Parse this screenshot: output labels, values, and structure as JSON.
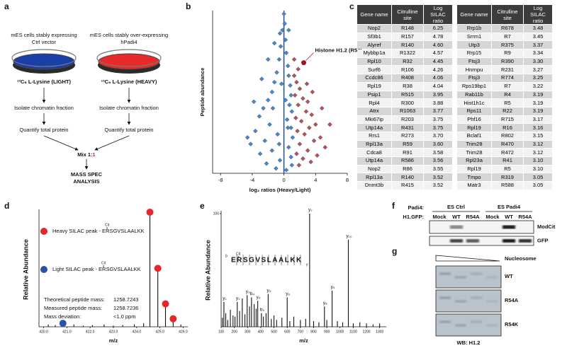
{
  "a": {
    "label": "a",
    "left": {
      "title": [
        "mES cells  stably expressing",
        "Ctrl vector"
      ],
      "medium": "¹³C₆ L-Lysine (LIGHT)",
      "steps": [
        "Isolate chromatin fraction",
        "Quantify total protein"
      ],
      "color": "#1b3fa8"
    },
    "right": {
      "title": [
        "mES cells stably over-expressing",
        "hPadi4"
      ],
      "medium": "¹³C₆ L-Lysine (HEAVY)",
      "steps": [
        "Isolate chromatin fraction",
        "Quantify total protein"
      ],
      "color": "#e82a2a"
    },
    "mix": [
      "Mix 1:",
      "1"
    ],
    "result": [
      "MASS SPEC",
      "ANALYSIS"
    ]
  },
  "b": {
    "label": "b",
    "type": "scatter",
    "xlabel": "log₂ ratios (Heavy/Light)",
    "ylabel": "Peptide abundance",
    "annotation": "Histone H1.2 (R54)",
    "xlim": [
      -9,
      8
    ],
    "ylim": [
      0,
      100
    ],
    "xticks": [
      -8,
      -4,
      0,
      4,
      8
    ],
    "series": [
      {
        "color": "#4a86c8",
        "x": [
          0,
          0.1,
          -0.2,
          0.2,
          -0.4,
          0.3,
          -0.6,
          0.5,
          -0.9,
          0.6,
          -1.2,
          0.8,
          -1.5,
          0.9,
          -2.0,
          0.7,
          -2.6,
          1.0,
          -3.1,
          0.4,
          -1.8,
          0.9,
          -3.6,
          -0.8,
          1.1,
          -2.4,
          -4.2,
          0.6,
          -1.5,
          -3.0,
          0.9,
          -0.5,
          -2.2,
          1.0,
          -1.0,
          0.3,
          -4.6,
          -3.8,
          -2.8,
          -2.0,
          -1.2,
          -0.5,
          0.6,
          -1.4,
          -0.3,
          0.2,
          -0.6,
          0.5
        ],
        "y": [
          98,
          92,
          88,
          82,
          78,
          74,
          70,
          66,
          62,
          60,
          56,
          54,
          50,
          48,
          45,
          42,
          40,
          38,
          35,
          33,
          30,
          28,
          26,
          24,
          22,
          20,
          18,
          16,
          14,
          12,
          10,
          8,
          6,
          5,
          3,
          2,
          22,
          44,
          58,
          70,
          80,
          86,
          88,
          40,
          55,
          45,
          18,
          28
        ]
      },
      {
        "color": "#c0504d",
        "x": [
          1.3,
          1.6,
          2.0,
          1.4,
          2.4,
          3.0,
          1.8,
          2.8,
          3.5,
          1.5,
          2.2,
          4.0,
          3.2,
          1.7,
          2.6,
          4.6,
          3.8,
          2.0,
          5.2,
          3.0,
          1.6,
          4.2,
          2.4,
          3.4,
          1.9,
          5.8,
          4.8,
          2.9,
          1.3,
          1.8,
          3.6
        ],
        "y": [
          60,
          56,
          52,
          48,
          46,
          44,
          42,
          38,
          36,
          34,
          32,
          30,
          28,
          26,
          24,
          22,
          20,
          18,
          16,
          14,
          12,
          11,
          9,
          7,
          5,
          30,
          40,
          55,
          70,
          64,
          50
        ]
      },
      {
        "color": "#a3122a",
        "x": [
          2.5
        ],
        "y": [
          68
        ]
      }
    ]
  },
  "c": {
    "label": "c",
    "headers": [
      "Gene name",
      "Citrulline site",
      "Log SILAC ratio"
    ],
    "tables": [
      [
        [
          "Nop2",
          "R148",
          "6.25"
        ],
        [
          "Sf3b1",
          "R157",
          "4.78"
        ],
        [
          "Alyref",
          "R140",
          "4.60"
        ],
        [
          "Mybbp1a",
          "R1322",
          "4.57"
        ],
        [
          "Rpl10",
          "R32",
          "4.45"
        ],
        [
          "Surf6",
          "R106",
          "4.26"
        ],
        [
          "Ccdc86",
          "R408",
          "4.06"
        ],
        [
          "Rpl19",
          "R38",
          "4.04"
        ],
        [
          "Psip1",
          "R515",
          "3.95"
        ],
        [
          "Rpl4",
          "R300",
          "3.88"
        ],
        [
          "Atrx",
          "R1063",
          "3.77"
        ],
        [
          "Mki67ip",
          "R203",
          "3.75"
        ],
        [
          "Utp14a",
          "R431",
          "3.75"
        ],
        [
          "Rrs1",
          "R273",
          "3.70"
        ],
        [
          "Rpl13a",
          "R59",
          "3.60"
        ],
        [
          "Cdca8",
          "R91",
          "3.58"
        ],
        [
          "Utp14a",
          "R586",
          "3.56"
        ],
        [
          "Nop2",
          "R86",
          "3.55"
        ],
        [
          "Rpl13a",
          "R140",
          "3.52"
        ],
        [
          "Dnmt3b",
          "R415",
          "3.52"
        ]
      ],
      [
        [
          "Rrp1b",
          "R678",
          "3.48"
        ],
        [
          "Srrm1",
          "R7",
          "3.45"
        ],
        [
          "Utp3",
          "R375",
          "3.37"
        ],
        [
          "Rrp15",
          "R9",
          "3.34"
        ],
        [
          "Ftsj3",
          "R390",
          "3.30"
        ],
        [
          "Hnrnpu",
          "R231",
          "3.27"
        ],
        [
          "Ftsj3",
          "R774",
          "3.25"
        ],
        [
          "Rps19bp1",
          "R7",
          "3.22"
        ],
        [
          "Rab11b",
          "R4",
          "3.19"
        ],
        [
          "Hist1h1c",
          "R5",
          "3.19"
        ],
        [
          "Rps11",
          "R22",
          "3.19"
        ],
        [
          "Phf16",
          "R715",
          "3.17"
        ],
        [
          "Rpl19",
          "R16",
          "3.16"
        ],
        [
          "Bclaf1",
          "R802",
          "3.15"
        ],
        [
          "Trim28",
          "R470",
          "3.12"
        ],
        [
          "Trim28",
          "R472",
          "3.12"
        ],
        [
          "Rpl23a",
          "R41",
          "3.10"
        ],
        [
          "Rpl19",
          "R5",
          "3.10"
        ],
        [
          "Tmpo",
          "R319",
          "3.05"
        ],
        [
          "Matr3",
          "R588",
          "3.05"
        ]
      ]
    ]
  },
  "d": {
    "label": "d",
    "type": "spectrum",
    "ylabel": "Relative Abundance",
    "xlabel": "m/z",
    "xlim": [
      419.8,
      426.2
    ],
    "ylim": [
      0,
      100
    ],
    "xticks": [
      {
        "value": 420,
        "label": "420.0"
      },
      {
        "value": 421,
        "label": "421.0"
      },
      {
        "value": 422,
        "label": "422.0"
      },
      {
        "value": 423,
        "label": "423.0"
      },
      {
        "value": 424,
        "label": "424.0"
      },
      {
        "value": 425,
        "label": "425.0"
      },
      {
        "value": 426,
        "label": "426.0"
      }
    ],
    "series": [
      {
        "color": "#e8262a",
        "x": [
          424.57,
          424.91,
          425.24,
          425.57
        ],
        "y": [
          100,
          51,
          20,
          7
        ]
      },
      {
        "color": "#2a52a8",
        "x": [
          420.83
        ],
        "y": [
          3
        ]
      },
      {
        "color": "#000000",
        "x": [
          420.2,
          420.5,
          421.3,
          421.7,
          422.1,
          422.6,
          423.0,
          423.4,
          423.9,
          424.3,
          425.9
        ],
        "y": [
          2,
          1.5,
          2,
          1,
          1.5,
          2,
          1,
          1.5,
          2,
          3,
          2
        ]
      }
    ],
    "legend": [
      "Heavy SILAC peak - ERSGVSLAALKK",
      "Light SILAC peak - ERSGVSLAALKK"
    ],
    "mod": "Cit",
    "masses": [
      [
        "Theoretical peptide mass:",
        "1258.7243"
      ],
      [
        "Measured peptide mass:",
        "1258.7236"
      ],
      [
        "Mass deviation:",
        "<1.0 ppm"
      ]
    ]
  },
  "e": {
    "label": "e",
    "type": "spectrum",
    "ylabel": "Relative Abundance",
    "xlabel": "m/z",
    "xlim": [
      100,
      1350
    ],
    "ylim": [
      0,
      100
    ],
    "xticks": [
      100,
      200,
      300,
      400,
      500,
      600,
      700,
      800,
      900,
      1000,
      1100,
      1200,
      1300
    ],
    "yticks": [
      100
    ],
    "ions": {
      "labels": [
        "y₁",
        "y₂",
        "y₃",
        "y₄",
        "y₅",
        "y₆",
        "y₇",
        "y₈",
        "y₉",
        "y₁₀",
        "b₄",
        "b₅"
      ],
      "x": [
        121,
        222,
        297,
        377,
        456,
        600,
        770,
        882,
        940,
        1063,
        330,
        405
      ],
      "y": [
        22,
        22,
        28,
        23,
        29,
        26,
        100,
        18,
        32,
        77,
        26,
        12
      ]
    },
    "other": {
      "x": [
        110,
        135,
        150,
        170,
        190,
        205,
        240,
        260,
        280,
        315,
        350,
        365,
        420,
        440,
        480,
        500,
        520,
        560,
        620,
        650,
        700,
        740,
        800,
        840,
        900,
        980,
        1020,
        1100,
        1150,
        1200,
        1250,
        1300
      ],
      "y": [
        8,
        12,
        6,
        15,
        10,
        9,
        14,
        25,
        11,
        18,
        20,
        16,
        9,
        12,
        7,
        10,
        6,
        8,
        5,
        9,
        6,
        7,
        5,
        4,
        6,
        5,
        4,
        3,
        4,
        3,
        2,
        3
      ]
    },
    "sequence": "ERSGVSLAALKK",
    "mod": "Cit",
    "ion_types": [
      "b",
      "y"
    ]
  },
  "f": {
    "label": "f",
    "row_labels": [
      "Padi4:",
      "H1.GFP:"
    ],
    "groups": [
      "ES Ctrl",
      "ES Padi4"
    ],
    "lanes": [
      "Mock",
      "WT",
      "R54A",
      "Mock",
      "WT",
      "R54A"
    ],
    "blots": [
      "ModCit",
      "GFP"
    ]
  },
  "g": {
    "label": "g",
    "gradient": "Nucleosome",
    "blots": [
      "WT",
      "R54A",
      "R54K"
    ],
    "footer": "WB: H1.2"
  }
}
